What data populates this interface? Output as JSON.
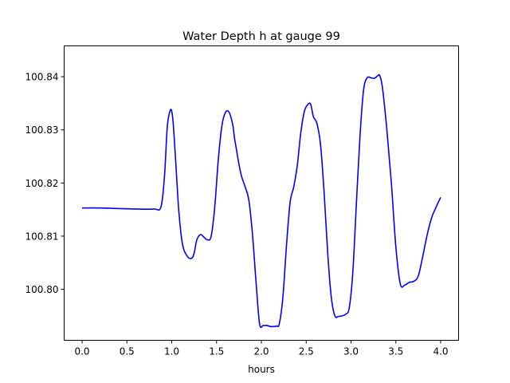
{
  "chart_data": {
    "type": "line",
    "title": "Water Depth h at gauge 99",
    "xlabel": "hours",
    "ylabel": "",
    "xlim": [
      -0.2,
      4.2
    ],
    "ylim": [
      100.7904,
      100.8458
    ],
    "x_ticks": [
      0.0,
      0.5,
      1.0,
      1.5,
      2.0,
      2.5,
      3.0,
      3.5,
      4.0
    ],
    "x_tick_labels": [
      "0.0",
      "0.5",
      "1.0",
      "1.5",
      "2.0",
      "2.5",
      "3.0",
      "3.5",
      "4.0"
    ],
    "y_ticks": [
      100.8,
      100.81,
      100.82,
      100.83,
      100.84
    ],
    "y_tick_labels": [
      "100.80",
      "100.81",
      "100.82",
      "100.83",
      "100.84"
    ],
    "grid": false,
    "legend": "none",
    "series": [
      {
        "color": "#0000ff",
        "x": [
          0.0,
          0.2,
          0.4,
          0.6,
          0.8,
          0.88,
          0.92,
          0.95,
          0.98,
          1.0,
          1.02,
          1.05,
          1.08,
          1.12,
          1.17,
          1.22,
          1.25,
          1.28,
          1.32,
          1.36,
          1.4,
          1.44,
          1.48,
          1.52,
          1.56,
          1.6,
          1.64,
          1.68,
          1.7,
          1.72,
          1.75,
          1.78,
          1.82,
          1.86,
          1.9,
          1.94,
          1.98,
          2.02,
          2.06,
          2.1,
          2.14,
          2.17,
          2.2,
          2.24,
          2.28,
          2.32,
          2.36,
          2.4,
          2.44,
          2.48,
          2.52,
          2.55,
          2.58,
          2.62,
          2.66,
          2.7,
          2.74,
          2.78,
          2.82,
          2.86,
          2.9,
          2.94,
          2.98,
          3.02,
          3.06,
          3.1,
          3.14,
          3.18,
          3.22,
          3.26,
          3.3,
          3.32,
          3.35,
          3.4,
          3.45,
          3.5,
          3.55,
          3.6,
          3.65,
          3.7,
          3.75,
          3.8,
          3.85,
          3.9,
          3.95,
          4.0
        ],
        "y": [
          100.8153,
          100.8153,
          100.8152,
          100.8151,
          100.8151,
          100.8155,
          100.8215,
          100.8305,
          100.8335,
          100.8335,
          100.8305,
          100.8225,
          100.8145,
          100.8085,
          100.8063,
          100.8058,
          100.8068,
          100.8093,
          100.8103,
          100.8098,
          100.8093,
          100.81,
          100.8155,
          100.8245,
          100.8308,
          100.8333,
          100.8333,
          100.831,
          100.8285,
          100.8265,
          100.8235,
          100.8212,
          100.8192,
          100.8168,
          100.8105,
          100.8015,
          100.7935,
          100.7932,
          100.7932,
          100.793,
          100.793,
          100.7931,
          100.7935,
          100.7985,
          100.8082,
          100.8163,
          100.8192,
          100.8232,
          100.8295,
          100.8335,
          100.8348,
          100.8348,
          100.8325,
          100.8312,
          100.8272,
          100.8182,
          100.8068,
          100.7985,
          100.795,
          100.7949,
          100.795,
          100.7953,
          100.7965,
          100.8032,
          100.8162,
          100.8288,
          100.8375,
          100.8398,
          100.8398,
          100.8397,
          100.8402,
          100.8402,
          100.838,
          100.83,
          100.82,
          100.808,
          100.801,
          100.8008,
          100.8013,
          100.8015,
          100.8025,
          100.8062,
          100.8103,
          100.8135,
          100.8155,
          100.8173
        ]
      }
    ]
  }
}
